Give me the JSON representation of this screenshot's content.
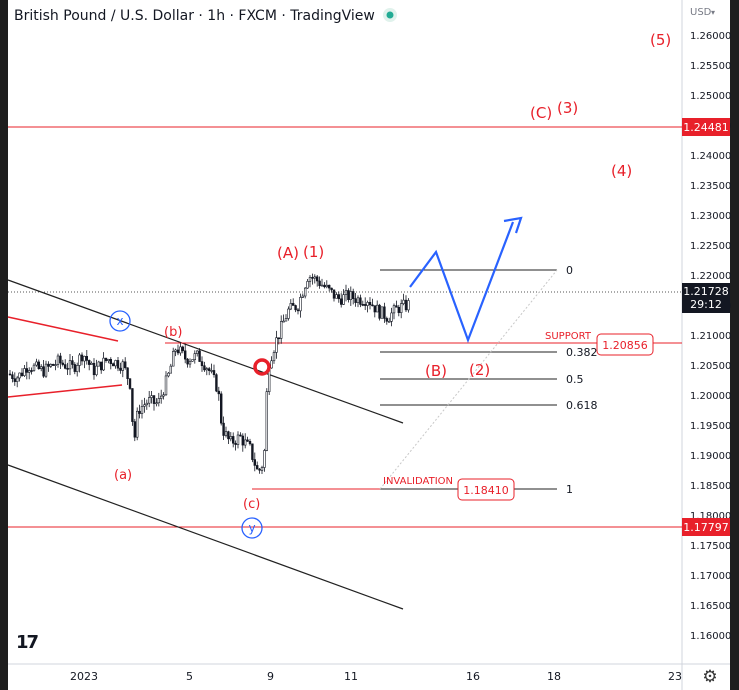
{
  "header": {
    "title": "British Pound / U.S. Dollar · 1h · FXCM · TradingView"
  },
  "price_axis": {
    "currency": "USD",
    "ticks": [
      "1.26000",
      "1.25500",
      "1.25000",
      "1.24500",
      "1.24000",
      "1.23500",
      "1.23000",
      "1.22500",
      "1.22000",
      "1.21500",
      "1.21000",
      "1.20500",
      "1.20000",
      "1.19500",
      "1.19000",
      "1.18500",
      "1.18000",
      "1.17500",
      "1.17000",
      "1.16500",
      "1.16000"
    ],
    "last_price": "1.21728",
    "countdown": "29:12",
    "line_level_upper": "1.24481",
    "line_level_lower": "1.17797"
  },
  "time_axis": {
    "ticks": [
      "2023",
      "5",
      "9",
      "11",
      "16",
      "18",
      "23"
    ]
  },
  "annotations": {
    "wave_5": "(5)",
    "wave_C": "(C)",
    "wave_3": "(3)",
    "wave_4": "(4)",
    "wave_A": "(A)",
    "wave_1": "(1)",
    "wave_b": "(b)",
    "wave_a": "(a)",
    "wave_c": "(c)",
    "wave_B": "(B)",
    "wave_2": "(2)",
    "circle_x": "x",
    "circle_y": "y",
    "support_label": "SUPPORT",
    "support_value": "1.20856",
    "invalidation_label": "INVALIDATION",
    "invalidation_value": "1.18410"
  },
  "fib": {
    "levels": [
      "0",
      "0.382",
      "0.5",
      "0.618",
      "1"
    ]
  },
  "colors": {
    "up": "#131722",
    "down": "#131722",
    "red": "#e8202a",
    "blue": "#2962ff",
    "line": "#222222",
    "label_bg": "#e8202a",
    "last_bg": "#131722"
  },
  "chart_data": {
    "type": "candlestick",
    "title": "British Pound / U.S. Dollar · 1h · FXCM · TradingView",
    "ylim": [
      1.158,
      1.265
    ],
    "approx_close_path": [
      [
        0,
        1.2035
      ],
      [
        10,
        1.203
      ],
      [
        20,
        1.205
      ],
      [
        35,
        1.204
      ],
      [
        50,
        1.2055
      ],
      [
        65,
        1.2045
      ],
      [
        75,
        1.207
      ],
      [
        85,
        1.204
      ],
      [
        100,
        1.206
      ],
      [
        115,
        1.205
      ],
      [
        122,
        1.202
      ],
      [
        126,
        1.192
      ],
      [
        130,
        1.1975
      ],
      [
        140,
        1.199
      ],
      [
        150,
        1.1985
      ],
      [
        160,
        1.203
      ],
      [
        168,
        1.208
      ],
      [
        178,
        1.206
      ],
      [
        190,
        1.2065
      ],
      [
        200,
        1.2045
      ],
      [
        210,
        1.201
      ],
      [
        214,
        1.1945
      ],
      [
        222,
        1.192
      ],
      [
        232,
        1.193
      ],
      [
        242,
        1.191
      ],
      [
        250,
        1.187
      ],
      [
        256,
        1.189
      ],
      [
        260,
        1.205
      ],
      [
        268,
        1.209
      ],
      [
        280,
        1.214
      ],
      [
        290,
        1.215
      ],
      [
        300,
        1.22
      ],
      [
        310,
        1.219
      ],
      [
        320,
        1.2175
      ],
      [
        330,
        1.216
      ],
      [
        340,
        1.2165
      ],
      [
        350,
        1.216
      ],
      [
        360,
        1.216
      ],
      [
        370,
        1.214
      ],
      [
        380,
        1.213
      ],
      [
        390,
        1.2145
      ],
      [
        400,
        1.215
      ],
      [
        410,
        1.2173
      ]
    ],
    "levels": {
      "last": 1.21728,
      "upper_line": 1.24481,
      "lower_line": 1.17797,
      "support": 1.20856,
      "invalidation": 1.1841
    }
  }
}
